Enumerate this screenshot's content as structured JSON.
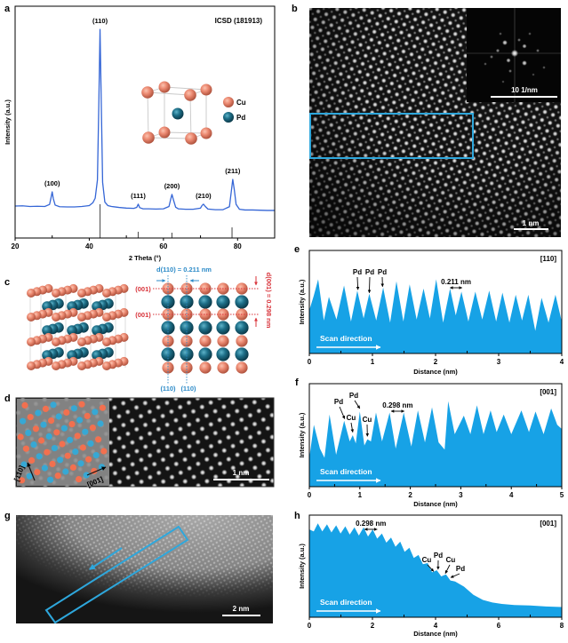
{
  "panel_labels": [
    "a",
    "b",
    "c",
    "d",
    "e",
    "f",
    "g",
    "h"
  ],
  "colors": {
    "cu": "#ec8a72",
    "pd": "#1e7089",
    "xrd_line": "#3566d6",
    "reference_stick": "#555555",
    "profile_fill": "#17a2e6",
    "highlight": "#2ea7dc",
    "annotation_red": "#d8333a",
    "annotation_blue": "#2d8bc8",
    "overlay_red": "#f2704f",
    "overlay_blue": "#37a8d4"
  },
  "panel_a": {
    "legend": [
      {
        "label": "Cu"
      },
      {
        "label": "Pd"
      }
    ]
  },
  "panel_b": {
    "scale_bar": "1 nm",
    "fft_scale_bar": "10 1/nm"
  },
  "panel_c": {
    "d110": "d(110) = 0.211 nm",
    "d001": "d(001) = 0.298 nm",
    "plane_001": [
      "(001)",
      "(001)"
    ],
    "plane_110": [
      "(110)",
      "(110)"
    ]
  },
  "panel_d": {
    "direction_110": "[110]",
    "direction_001": "[001]",
    "scale_bar": "1 nm"
  },
  "panel_g": {
    "scale_bar": "2 nm"
  },
  "chart_data": [
    {
      "type": "line",
      "annotation": "ICSD (181913)",
      "xlabel": "2 Theta (°)",
      "ylabel": "Intensity (a.u.)",
      "xlim": [
        20,
        90
      ],
      "ylim": [
        0,
        100
      ],
      "xticks": [
        20,
        40,
        60,
        80
      ],
      "xtick_labels": [
        "20",
        "40",
        "60",
        "80"
      ],
      "minor_xticks": [
        30,
        50,
        70
      ],
      "grid": false,
      "series": [
        {
          "x": [
            20,
            22,
            24,
            26,
            28,
            29.3,
            29.7,
            30.0,
            30.3,
            30.8,
            32,
            34,
            36,
            38,
            40,
            41,
            41.6,
            42.2,
            42.6,
            42.9,
            43.2,
            43.6,
            44.2,
            45,
            46,
            48,
            50,
            52,
            52.8,
            53.2,
            53.6,
            54.5,
            56,
            58,
            60,
            61.5,
            62.0,
            62.3,
            62.7,
            63.3,
            64,
            66,
            68,
            70,
            70.4,
            70.8,
            71.3,
            72,
            74,
            76,
            77.8,
            78.3,
            78.7,
            79.1,
            79.6,
            80.5,
            82,
            84,
            86,
            88,
            90
          ],
          "y": [
            13.8,
            13.9,
            13.6,
            13.7,
            13.6,
            14.5,
            17.5,
            19.9,
            17.0,
            14.2,
            13.5,
            13.4,
            13.4,
            13.6,
            14.0,
            15.3,
            17.2,
            25,
            60,
            90,
            62,
            24,
            15.5,
            14.0,
            13.6,
            13.2,
            12.9,
            12.8,
            13.2,
            14.6,
            13.1,
            12.6,
            12.6,
            12.5,
            12.6,
            13.6,
            17.0,
            18.8,
            16.5,
            13.3,
            12.6,
            12.4,
            12.4,
            12.9,
            14.0,
            14.6,
            13.6,
            12.5,
            12.2,
            12.2,
            13.5,
            20,
            25.3,
            21,
            14.5,
            12.4,
            12.1,
            12.1,
            12.0,
            11.9,
            11.9
          ]
        }
      ],
      "reference_sticks": {
        "x": [
          42.9,
          53.2,
          62.3,
          78.5
        ],
        "y": [
          14.6,
          2.7,
          2.3,
          4.6
        ]
      },
      "peak_labels": [
        {
          "text": "(100)",
          "x": 30.0,
          "y": 19.9
        },
        {
          "text": "(110)",
          "x": 42.9,
          "y": 90
        },
        {
          "text": "(111)",
          "x": 53.2,
          "y": 14.6
        },
        {
          "text": "(200)",
          "x": 62.3,
          "y": 18.8
        },
        {
          "text": "(210)",
          "x": 70.8,
          "y": 14.6
        },
        {
          "text": "(211)",
          "x": 78.7,
          "y": 25.3
        }
      ]
    },
    {
      "type": "area",
      "xlabel": "Distance (nm)",
      "ylabel": "Intensity (a.u.)",
      "xlim": [
        0,
        4
      ],
      "ylim": [
        0,
        1
      ],
      "xticks": [
        0,
        1,
        2,
        3,
        4
      ],
      "xtick_labels": [
        "0",
        "1",
        "2",
        "3",
        "4"
      ],
      "minor_xticks": [
        0.5,
        1.5,
        2.5,
        3.5
      ],
      "zone_axis": "[110]",
      "series": [
        {
          "x": [
            0,
            0.07,
            0.14,
            0.23,
            0.31,
            0.43,
            0.55,
            0.66,
            0.76,
            0.86,
            0.95,
            1.06,
            1.17,
            1.28,
            1.38,
            1.49,
            1.59,
            1.7,
            1.81,
            1.91,
            2.01,
            2.12,
            2.23,
            2.32,
            2.41,
            2.52,
            2.63,
            2.74,
            2.85,
            2.96,
            3.06,
            3.17,
            3.27,
            3.37,
            3.47,
            3.58,
            3.68,
            3.79,
            3.9,
            4.0
          ],
          "y": [
            0.42,
            0.56,
            0.72,
            0.32,
            0.55,
            0.33,
            0.66,
            0.31,
            0.61,
            0.34,
            0.58,
            0.32,
            0.64,
            0.3,
            0.7,
            0.31,
            0.67,
            0.33,
            0.63,
            0.34,
            0.72,
            0.3,
            0.63,
            0.37,
            0.6,
            0.31,
            0.6,
            0.33,
            0.61,
            0.31,
            0.59,
            0.3,
            0.57,
            0.32,
            0.57,
            0.22,
            0.54,
            0.3,
            0.57,
            0.31
          ]
        }
      ],
      "atom_labels": [
        {
          "text": "Pd",
          "x": 0.77,
          "y": 0.61
        },
        {
          "text": "Pd",
          "x": 0.95,
          "y": 0.58
        },
        {
          "text": "Pd",
          "x": 1.16,
          "y": 0.64
        }
      ],
      "spacing": {
        "text": "0.211 nm",
        "x": [
          2.23,
          2.42
        ]
      },
      "scan_label": "Scan direction"
    },
    {
      "type": "area",
      "xlabel": "Distance (nm)",
      "ylabel": "Intensity (a.u.)",
      "xlim": [
        0,
        5
      ],
      "ylim": [
        0,
        1
      ],
      "xticks": [
        0,
        1,
        2,
        3,
        4,
        5
      ],
      "xtick_labels": [
        "0",
        "1",
        "2",
        "3",
        "4",
        "5"
      ],
      "minor_xticks": [
        0.5,
        1.5,
        2.5,
        3.5,
        4.5
      ],
      "zone_axis": "[001]",
      "series": [
        {
          "x": [
            0,
            0.09,
            0.21,
            0.3,
            0.4,
            0.53,
            0.69,
            0.8,
            0.86,
            0.92,
            1.0,
            1.09,
            1.15,
            1.22,
            1.32,
            1.44,
            1.59,
            1.71,
            1.87,
            2.02,
            2.15,
            2.29,
            2.43,
            2.56,
            2.68,
            2.75,
            2.88,
            3.06,
            3.19,
            3.32,
            3.45,
            3.59,
            3.71,
            3.85,
            4.0,
            4.2,
            4.35,
            4.48,
            4.64,
            4.79,
            4.91,
            5.0
          ],
          "y": [
            0.28,
            0.6,
            0.37,
            0.28,
            0.7,
            0.31,
            0.64,
            0.44,
            0.5,
            0.42,
            0.73,
            0.4,
            0.46,
            0.44,
            0.72,
            0.44,
            0.72,
            0.37,
            0.72,
            0.39,
            0.74,
            0.43,
            0.77,
            0.43,
            0.36,
            0.83,
            0.51,
            0.69,
            0.51,
            0.79,
            0.51,
            0.74,
            0.53,
            0.7,
            0.51,
            0.74,
            0.53,
            0.73,
            0.51,
            0.76,
            0.6,
            0.56
          ]
        }
      ],
      "atom_labels": [
        {
          "text": "Pd",
          "x": 0.7,
          "y": 0.65
        },
        {
          "text": "Cu",
          "x": 0.86,
          "y": 0.52
        },
        {
          "text": "Pd",
          "x": 1.0,
          "y": 0.75
        },
        {
          "text": "Cu",
          "x": 1.15,
          "y": 0.48
        }
      ],
      "spacing": {
        "text": "0.298 nm",
        "x": [
          1.62,
          1.88
        ]
      },
      "scan_label": "Scan direction"
    },
    {
      "type": "area",
      "xlabel": "Distance (nm)",
      "ylabel": "Intensity (a.u.)",
      "xlim": [
        0,
        8
      ],
      "ylim": [
        0,
        1
      ],
      "xticks": [
        0,
        2,
        4,
        6,
        8
      ],
      "xtick_labels": [
        "0",
        "2",
        "4",
        "6",
        "8"
      ],
      "minor_xticks": [
        1,
        3,
        5,
        7
      ],
      "zone_axis": "[001]",
      "series": [
        {
          "x": [
            0,
            0.14,
            0.27,
            0.41,
            0.56,
            0.7,
            0.85,
            0.99,
            1.14,
            1.28,
            1.43,
            1.57,
            1.72,
            1.86,
            2.01,
            2.15,
            2.3,
            2.44,
            2.59,
            2.73,
            2.88,
            3.02,
            3.17,
            3.31,
            3.46,
            3.6,
            3.75,
            3.89,
            4.04,
            4.18,
            4.33,
            4.47,
            4.62,
            4.9,
            5.2,
            5.5,
            5.8,
            6.1,
            6.5,
            7.0,
            7.5,
            8.0
          ],
          "y": [
            0.86,
            0.84,
            0.92,
            0.84,
            0.91,
            0.83,
            0.9,
            0.82,
            0.89,
            0.81,
            0.88,
            0.8,
            0.88,
            0.79,
            0.86,
            0.77,
            0.82,
            0.73,
            0.78,
            0.69,
            0.74,
            0.64,
            0.68,
            0.58,
            0.61,
            0.52,
            0.53,
            0.44,
            0.46,
            0.4,
            0.42,
            0.36,
            0.35,
            0.3,
            0.22,
            0.17,
            0.145,
            0.13,
            0.12,
            0.115,
            0.105,
            0.1
          ]
        }
      ],
      "atom_labels": [
        {
          "text": "Cu",
          "x": 3.94,
          "y": 0.44
        },
        {
          "text": "Pd",
          "x": 4.08,
          "y": 0.46
        },
        {
          "text": "Cu",
          "x": 4.31,
          "y": 0.42
        },
        {
          "text": "Pd",
          "x": 4.48,
          "y": 0.38
        }
      ],
      "spacing": {
        "text": "0.298 nm",
        "x": [
          1.75,
          2.15
        ]
      },
      "scan_label": "Scan direction"
    }
  ]
}
